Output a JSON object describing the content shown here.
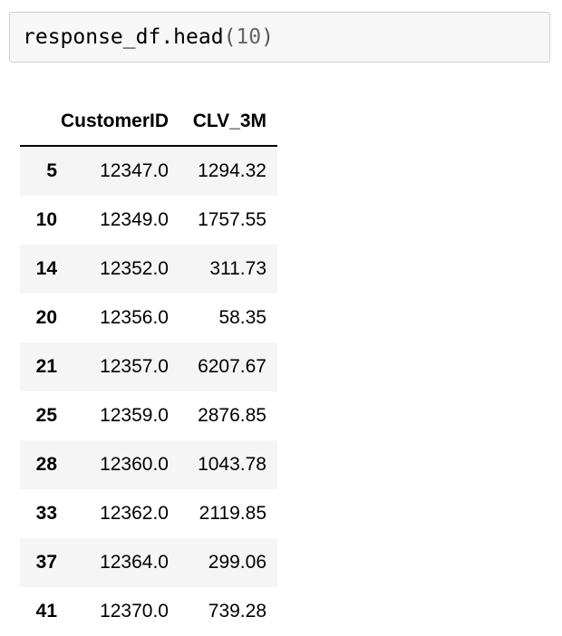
{
  "input_cell": {
    "code_object": "response_df.head",
    "open_paren": "(",
    "argument": "10",
    "close_paren": ")"
  },
  "dataframe": {
    "columns": [
      "CustomerID",
      "CLV_3M"
    ],
    "rows": [
      {
        "index": "5",
        "customer_id": "12347.0",
        "clv_3m": "1294.32"
      },
      {
        "index": "10",
        "customer_id": "12349.0",
        "clv_3m": "1757.55"
      },
      {
        "index": "14",
        "customer_id": "12352.0",
        "clv_3m": "311.73"
      },
      {
        "index": "20",
        "customer_id": "12356.0",
        "clv_3m": "58.35"
      },
      {
        "index": "21",
        "customer_id": "12357.0",
        "clv_3m": "6207.67"
      },
      {
        "index": "25",
        "customer_id": "12359.0",
        "clv_3m": "2876.85"
      },
      {
        "index": "28",
        "customer_id": "12360.0",
        "clv_3m": "1043.78"
      },
      {
        "index": "33",
        "customer_id": "12362.0",
        "clv_3m": "2119.85"
      },
      {
        "index": "37",
        "customer_id": "12364.0",
        "clv_3m": "299.06"
      },
      {
        "index": "41",
        "customer_id": "12370.0",
        "clv_3m": "739.28"
      }
    ]
  }
}
